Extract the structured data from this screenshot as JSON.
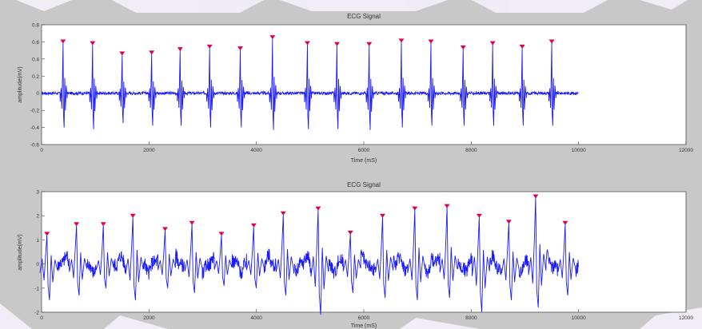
{
  "colors": {
    "figure_bg": "#c8c8c8",
    "axes_bg": "#ffffff",
    "signal": "#1a1aff",
    "peak_marker": "#e0004a",
    "watermark": "#f4f0fa"
  },
  "chart_data": [
    {
      "type": "line",
      "title": "ECG Signal",
      "xlabel": "Time (mS)",
      "ylabel": "amplitude(mV)",
      "xlim": [
        0,
        12000
      ],
      "ylim": [
        -0.6,
        0.8
      ],
      "xticks": [
        0,
        2000,
        4000,
        6000,
        8000,
        10000,
        12000
      ],
      "xtick_labels": [
        "0",
        "2000",
        "4000",
        "6000",
        "8000",
        "10000",
        "12000"
      ],
      "yticks": [
        -0.6,
        -0.4,
        -0.2,
        0,
        0.2,
        0.4,
        0.6,
        0.8
      ],
      "ytick_labels": [
        "-0.6",
        "-0.4",
        "-0.2",
        "0",
        "0.2",
        "0.4",
        "0.6",
        "0.8"
      ],
      "signal_end": 10000,
      "peaks": {
        "x": [
          400,
          950,
          1500,
          2050,
          2580,
          3130,
          3700,
          4300,
          4950,
          5500,
          6100,
          6700,
          7250,
          7850,
          8400,
          8950,
          9500
        ],
        "y": [
          0.59,
          0.57,
          0.45,
          0.46,
          0.5,
          0.53,
          0.51,
          0.64,
          0.57,
          0.56,
          0.56,
          0.6,
          0.59,
          0.52,
          0.57,
          0.53,
          0.59
        ]
      },
      "troughs": [
        -0.4,
        -0.42,
        -0.35,
        -0.38,
        -0.38,
        -0.4,
        -0.4,
        -0.43,
        -0.42,
        -0.42,
        -0.43,
        -0.4,
        -0.38,
        -0.38,
        -0.38,
        -0.38,
        -0.38
      ]
    },
    {
      "type": "line",
      "title": "ECG Signal",
      "xlabel": "Time (mS)",
      "ylabel": "amplitude(mV)",
      "xlim": [
        0,
        12000
      ],
      "ylim": [
        -2,
        3
      ],
      "xticks": [
        0,
        2000,
        4000,
        6000,
        8000,
        10000,
        12000
      ],
      "xtick_labels": [
        "0",
        "2000",
        "4000",
        "6000",
        "8000",
        "10000",
        "12000"
      ],
      "yticks": [
        -2,
        -1,
        0,
        1,
        2,
        3
      ],
      "ytick_labels": [
        "-2",
        "-1",
        "0",
        "1",
        "2",
        "3"
      ],
      "signal_end": 10000,
      "peaks": {
        "x": [
          100,
          650,
          1150,
          1700,
          2300,
          2800,
          3350,
          3950,
          4500,
          5150,
          5750,
          6350,
          6950,
          7550,
          8150,
          8700,
          9200,
          9750
        ],
        "y": [
          1.2,
          1.6,
          1.6,
          1.95,
          1.4,
          1.65,
          1.2,
          1.55,
          2.05,
          2.25,
          1.25,
          1.95,
          2.25,
          2.35,
          1.95,
          1.7,
          2.75,
          1.65
        ]
      },
      "troughs": [
        -1.5,
        -1.3,
        -1.0,
        -1.5,
        -1.0,
        -1.2,
        -0.9,
        -1.0,
        -1.3,
        -2.1,
        -1.2,
        -1.4,
        -1.5,
        -1.4,
        -2.0,
        -1.5,
        -1.8,
        -1.3
      ]
    }
  ]
}
